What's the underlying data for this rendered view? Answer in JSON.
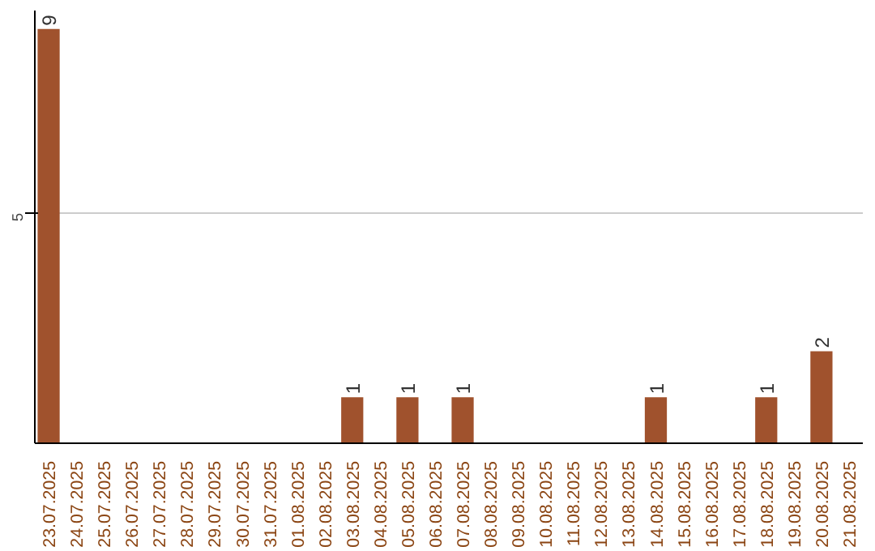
{
  "chart_data": {
    "type": "bar",
    "categories": [
      "23.07.2025",
      "24.07.2025",
      "25.07.2025",
      "26.07.2025",
      "27.07.2025",
      "28.07.2025",
      "29.07.2025",
      "30.07.2025",
      "31.07.2025",
      "01.08.2025",
      "02.08.2025",
      "03.08.2025",
      "04.08.2025",
      "05.08.2025",
      "06.08.2025",
      "07.08.2025",
      "08.08.2025",
      "09.08.2025",
      "10.08.2025",
      "11.08.2025",
      "12.08.2025",
      "13.08.2025",
      "14.08.2025",
      "15.08.2025",
      "16.08.2025",
      "17.08.2025",
      "18.08.2025",
      "19.08.2025",
      "20.08.2025",
      "21.08.2025"
    ],
    "values": [
      9,
      0,
      0,
      0,
      0,
      0,
      0,
      0,
      0,
      0,
      0,
      1,
      0,
      1,
      0,
      1,
      0,
      0,
      0,
      0,
      0,
      0,
      1,
      0,
      0,
      0,
      1,
      0,
      2,
      0
    ],
    "value_labels": [
      "9",
      null,
      null,
      null,
      null,
      null,
      null,
      null,
      null,
      null,
      null,
      "1",
      null,
      "1",
      null,
      "1",
      null,
      null,
      null,
      null,
      null,
      null,
      "1",
      null,
      null,
      null,
      "1",
      null,
      "2",
      null
    ],
    "color": "#a0522d",
    "ylim": [
      0,
      9.4
    ],
    "yticks": [
      5
    ],
    "grid": "y"
  }
}
